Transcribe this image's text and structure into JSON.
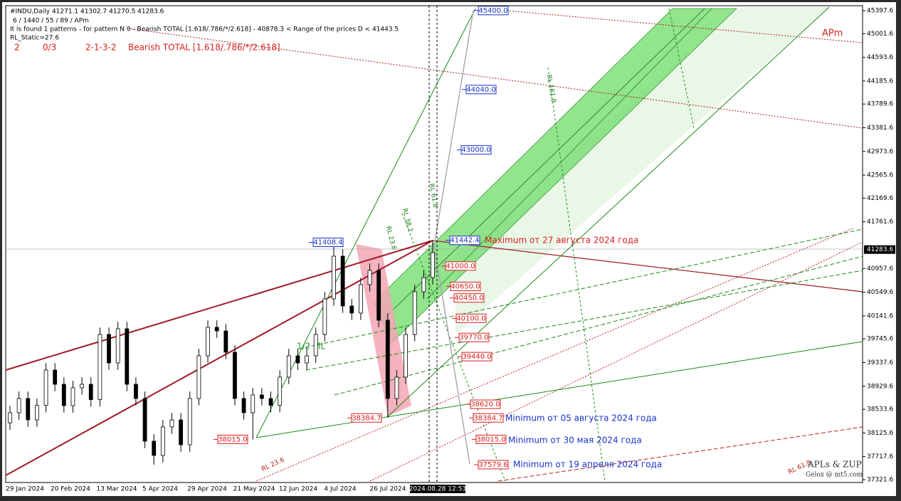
{
  "header": {
    "symbol_line": "#INDU,Daily  41271.1 41302.7 41270.5 41283.6",
    "settings_line": "6 / 1440 / 55 / 89 / APm",
    "pattern_line": "It is found 1 patterns  -  for pattern N 0 - Bearish TOTAL [1.618/.786/*/2.618] - 40878.3 < Range of the prices D < 41443.5",
    "static_line": "RL_Static=27.6",
    "pattern_number": "2",
    "pattern_count": "0/3",
    "pattern_code": "2-1-3-2",
    "pattern_name": "Bearish TOTAL [1.618/.786/*/2.618]"
  },
  "chart_data": {
    "type": "candlestick",
    "corner_label": "APm",
    "date_labels": [
      "29 Jan 2024",
      "20 Feb 2024",
      "13 Mar 2024",
      "5 Apr 2024",
      "29 Apr 2024",
      "21 May 2024",
      "12 Jun 2024",
      "4 Jul 2024",
      "26 Jul 2024"
    ],
    "cursor_time": "2024.08.28 12:53",
    "open": [
      38300,
      38474,
      38719,
      38351,
      38600,
      39209,
      38964,
      38596,
      38903,
      38964,
      38700,
      39822,
      39332,
      39920,
      38964,
      38719,
      37984,
      37739,
      38229,
      38350,
      37922,
      38719,
      39454,
      39945,
      39883,
      39516,
      38719,
      38474,
      38780,
      38719,
      38600,
      39087,
      39454,
      39332,
      39454,
      39822,
      40435,
      41170,
      40312,
      40190,
      40680,
      40925,
      40067,
      38719,
      39087,
      39822,
      40557,
      40802
    ],
    "high": [
      38594,
      38839,
      38839,
      38720,
      39329,
      39329,
      39084,
      39023,
      39084,
      39084,
      39942,
      39942,
      40040,
      40040,
      39084,
      38839,
      38104,
      38349,
      38470,
      38470,
      38839,
      39574,
      40065,
      40065,
      40003,
      39636,
      38839,
      38900,
      38900,
      38839,
      39207,
      39574,
      39574,
      39574,
      39942,
      40555,
      41408,
      41290,
      40432,
      40800,
      41045,
      41045,
      40187,
      39207,
      39942,
      40677,
      40922,
      41442
    ],
    "low": [
      38180,
      38354,
      38231,
      38231,
      38480,
      38844,
      38476,
      38476,
      38783,
      38580,
      38580,
      39212,
      39212,
      38844,
      38599,
      37864,
      37580,
      37619,
      38109,
      37802,
      37802,
      38599,
      39334,
      39763,
      39396,
      38599,
      38354,
      38015,
      38599,
      38480,
      38480,
      38967,
      39212,
      39212,
      39334,
      39702,
      40315,
      40192,
      40070,
      40070,
      40560,
      39947,
      38385,
      38599,
      38967,
      39702,
      40437,
      40682
    ],
    "close": [
      38474,
      38719,
      38351,
      38600,
      39209,
      38964,
      38596,
      38903,
      38964,
      38700,
      39822,
      39332,
      39920,
      38964,
      38719,
      37984,
      37739,
      38229,
      38350,
      37922,
      38719,
      39454,
      39945,
      39883,
      39516,
      38719,
      38474,
      38780,
      38719,
      38600,
      39087,
      39454,
      39332,
      39454,
      39822,
      40435,
      41170,
      40312,
      40190,
      40680,
      40925,
      40067,
      38719,
      39087,
      39822,
      40557,
      40802,
      41231
    ],
    "up_color": "#ffffff",
    "down_color": "#000000",
    "ylim": [
      37272.6,
      45483.3
    ],
    "yticks": [
      45397.6,
      45001.6,
      44593.6,
      44185.6,
      43789.6,
      43381.6,
      42973.6,
      42565.6,
      42169.6,
      41761.6,
      40957.6,
      40549.6,
      40141.6,
      39745.6,
      39337.6,
      38929.6,
      38533.6,
      38125.6,
      37717.6,
      37321.6
    ],
    "current_price": 41283.6,
    "price_labels": [
      {
        "value": 45400,
        "label": "45400.0",
        "color": "#1a32c8"
      },
      {
        "value": 44040,
        "label": "44040.0",
        "color": "#1a32c8"
      },
      {
        "value": 43000,
        "label": "43000.0",
        "color": "#1a32c8"
      },
      {
        "value": 41442.4,
        "label": "41442.4",
        "color": "#1a32c8"
      },
      {
        "value": 41408.4,
        "label": "41408.4",
        "color": "#1a32c8"
      },
      {
        "value": 41000,
        "label": "41000.0",
        "color": "#d81e1e"
      },
      {
        "value": 40650,
        "label": "40650.0",
        "color": "#d81e1e"
      },
      {
        "value": 40450,
        "label": "40450.0",
        "color": "#d81e1e"
      },
      {
        "value": 40100,
        "label": "40100.0",
        "color": "#d81e1e"
      },
      {
        "value": 39770,
        "label": "39770.0",
        "color": "#d81e1e"
      },
      {
        "value": 39440,
        "label": "39440.0",
        "color": "#d81e1e"
      },
      {
        "value": 38620,
        "label": "38620.0",
        "color": "#d81e1e"
      },
      {
        "value": 38384.7,
        "label": "38384.7",
        "color": "#d81e1e"
      },
      {
        "value": 38384.7,
        "label": "38384.7",
        "color": "#d81e1e"
      },
      {
        "value": 38015,
        "label": "38015.0",
        "color": "#d81e1e"
      },
      {
        "value": 38015,
        "label": "38015.0",
        "color": "#d81e1e"
      },
      {
        "value": 37579.6,
        "label": "37579.6",
        "color": "#d81e1e"
      }
    ],
    "annotations": {
      "maximum": "Maximum от 27 августа 2024 года",
      "minimum_aug": "Minimum от 05 августа 2024 года",
      "minimum_may": "Minimum от 30 мая 2024 года",
      "minimum_apr": "Minimum от 19 апреля 2024 года",
      "median_line": "1/2 ML",
      "rl_236": "RL 23.6",
      "rl_382": "RL 38.2",
      "rl_618": "RL 61.8",
      "rl_1618": "RL 161.8",
      "rl_236_low": "RL 23.6",
      "rl_618_low": "RL 61.8",
      "brand": "APLs & ZUP",
      "site": "Gelox @ mt5.com"
    }
  }
}
